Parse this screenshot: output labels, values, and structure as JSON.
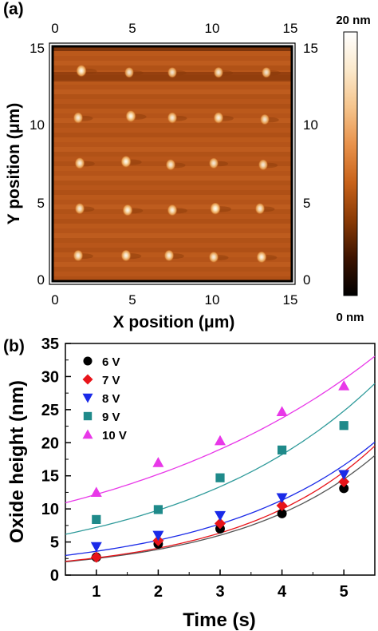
{
  "panel_a": {
    "label": "(a)",
    "afm": {
      "x_ticks": [
        "0",
        "5",
        "10",
        "15"
      ],
      "y_ticks": [
        "0",
        "5",
        "10",
        "15"
      ],
      "xlabel": "X position (μm)",
      "ylabel": "Y position (μm)",
      "xlim": [
        0,
        15
      ],
      "ylim": [
        0,
        15
      ],
      "dots": [
        {
          "x": 1.8,
          "y": 13.4,
          "h": 0.95
        },
        {
          "x": 4.8,
          "y": 13.3,
          "h": 0.7
        },
        {
          "x": 7.5,
          "y": 13.3,
          "h": 0.7
        },
        {
          "x": 10.4,
          "y": 13.3,
          "h": 0.75
        },
        {
          "x": 13.4,
          "y": 13.3,
          "h": 0.7
        },
        {
          "x": 1.6,
          "y": 10.4,
          "h": 0.8
        },
        {
          "x": 4.9,
          "y": 10.5,
          "h": 0.95
        },
        {
          "x": 7.5,
          "y": 10.4,
          "h": 0.8
        },
        {
          "x": 10.4,
          "y": 10.4,
          "h": 0.85
        },
        {
          "x": 13.3,
          "y": 10.3,
          "h": 0.7
        },
        {
          "x": 1.7,
          "y": 7.5,
          "h": 0.85
        },
        {
          "x": 4.6,
          "y": 7.6,
          "h": 0.95
        },
        {
          "x": 7.4,
          "y": 7.4,
          "h": 0.8
        },
        {
          "x": 10.1,
          "y": 7.5,
          "h": 0.75
        },
        {
          "x": 13.2,
          "y": 7.4,
          "h": 0.75
        },
        {
          "x": 1.7,
          "y": 4.6,
          "h": 0.8
        },
        {
          "x": 4.7,
          "y": 4.5,
          "h": 0.9
        },
        {
          "x": 7.5,
          "y": 4.5,
          "h": 0.85
        },
        {
          "x": 10.2,
          "y": 4.6,
          "h": 1.0
        },
        {
          "x": 13.0,
          "y": 4.6,
          "h": 0.8
        },
        {
          "x": 1.6,
          "y": 1.6,
          "h": 0.85
        },
        {
          "x": 4.6,
          "y": 1.6,
          "h": 0.9
        },
        {
          "x": 7.3,
          "y": 1.6,
          "h": 0.85
        },
        {
          "x": 10.1,
          "y": 1.5,
          "h": 0.8
        },
        {
          "x": 13.1,
          "y": 1.5,
          "h": 0.9
        }
      ]
    },
    "colorbar": {
      "max_label": "20 nm",
      "min_label": "0 nm",
      "range": [
        0,
        20
      ],
      "stops": [
        "#000000",
        "#3d1300",
        "#8a3a05",
        "#c8621a",
        "#e8914a",
        "#f5c48c",
        "#fbe9cc",
        "#ffffff"
      ]
    }
  },
  "panel_b": {
    "label": "(b)"
  },
  "chart_data": {
    "type": "scatter",
    "xlabel": "Time (s)",
    "ylabel": "Oxide height (nm)",
    "xlim": [
      0.5,
      5.5
    ],
    "ylim": [
      0,
      35
    ],
    "x_ticks": [
      "1",
      "2",
      "3",
      "4",
      "5"
    ],
    "y_ticks": [
      "0",
      "5",
      "10",
      "15",
      "20",
      "25",
      "30",
      "35"
    ],
    "legend_placement": "upper-left",
    "x": [
      1,
      2,
      3,
      4,
      5
    ],
    "series": [
      {
        "name": "6 V",
        "marker": "circle",
        "color": "#000000",
        "fit_color": "#555555",
        "values": [
          2.7,
          4.7,
          7.0,
          9.3,
          13.1
        ],
        "fit": [
          2.5,
          5.0,
          7.7,
          10.7,
          14.5
        ]
      },
      {
        "name": "7 V",
        "marker": "diamond",
        "color": "#e8141a",
        "fit_color": "#e8141a",
        "values": [
          2.7,
          5.2,
          7.8,
          10.5,
          14.1
        ],
        "fit": [
          2.6,
          5.2,
          8.2,
          11.5,
          15.6
        ]
      },
      {
        "name": "8 V",
        "marker": "triangle-down",
        "color": "#1a2ae8",
        "fit_color": "#1a2ae8",
        "values": [
          4.3,
          6.0,
          9.0,
          11.7,
          15.2
        ],
        "fit": [
          3.6,
          6.2,
          9.2,
          12.6,
          16.6
        ]
      },
      {
        "name": "9 V",
        "marker": "square",
        "color": "#1f8a8a",
        "fit_color": "#2e9a9a",
        "values": [
          8.4,
          9.9,
          14.7,
          18.9,
          22.6
        ],
        "fit": [
          7.2,
          11.0,
          15.2,
          19.8,
          24.8
        ]
      },
      {
        "name": "10 V",
        "marker": "triangle-up",
        "color": "#e838e8",
        "fit_color": "#e838e8",
        "values": [
          12.5,
          17.0,
          20.3,
          24.7,
          28.6
        ],
        "fit": [
          12.2,
          15.8,
          19.9,
          24.5,
          29.6
        ]
      }
    ]
  }
}
